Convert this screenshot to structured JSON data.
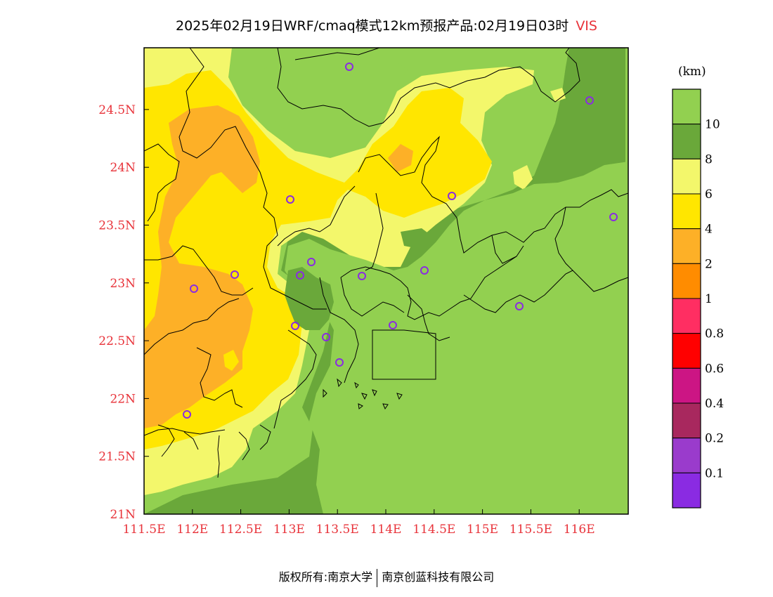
{
  "title": {
    "text": "2025年02月19日WRF/cmaq模式12km预报产品:02月19日03时",
    "variable": "VIS"
  },
  "map": {
    "lat_ticks": [
      "21N",
      "21.5N",
      "22N",
      "22.5N",
      "23N",
      "23.5N",
      "24N",
      "24.5N"
    ],
    "lon_ticks": [
      "111.5E",
      "112E",
      "112.5E",
      "113E",
      "113.5E",
      "114E",
      "114.5E",
      "115E",
      "115.5E",
      "116E"
    ],
    "tick_color": "#e8333a"
  },
  "colorbar": {
    "unit": "(km)",
    "classes": [
      {
        "color": "#92d050"
      },
      {
        "color": "#6aa83a"
      },
      {
        "color": "#f3f76b"
      },
      {
        "color": "#ffe600"
      },
      {
        "color": "#fdb027"
      },
      {
        "color": "#ff8c00"
      },
      {
        "color": "#ff2e62"
      },
      {
        "color": "#ff0000"
      },
      {
        "color": "#cc1584"
      },
      {
        "color": "#a8285e"
      },
      {
        "color": "#9a3bcc"
      },
      {
        "color": "#8a2be2"
      }
    ],
    "labels": [
      "10",
      "8",
      "6",
      "4",
      "2",
      "1",
      "0.8",
      "0.6",
      "0.4",
      "0.2",
      "0.1"
    ]
  },
  "footer": {
    "left": "版权所有:南京大学",
    "right": "南京创蓝科技有限公司"
  }
}
